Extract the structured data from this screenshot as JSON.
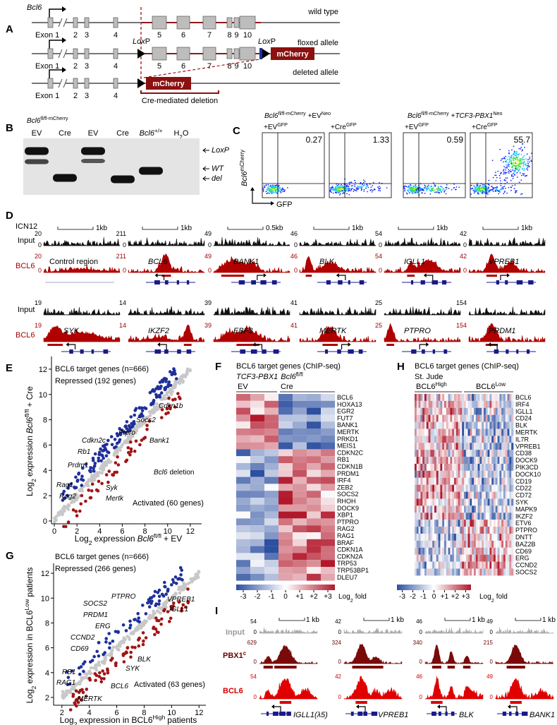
{
  "A": {
    "label": "A",
    "gene": "Bcl6",
    "exon_labels": [
      "Exon 1",
      "2",
      "3",
      "4",
      "5",
      "6",
      "7",
      "8",
      "9",
      "10"
    ],
    "alleles": [
      "wild type",
      "floxed allele",
      "deleted allele"
    ],
    "loxp": [
      "Lox",
      "P"
    ],
    "reporter": "mCherry",
    "deletion": "Cre-mediated deletion"
  },
  "B": {
    "label": "B",
    "title": [
      "Bcl6",
      "fl/fl-mCherry"
    ],
    "lanes": [
      [
        "EV"
      ],
      [
        "Cre"
      ],
      [
        "EV"
      ],
      [
        "Cre"
      ],
      [
        "Bcl6",
        "+/+"
      ],
      [
        "H",
        "2",
        "O"
      ]
    ],
    "bands": [
      "LoxP",
      "WT",
      "del"
    ]
  },
  "C": {
    "label": "C",
    "groups": [
      [
        "Bcl6",
        "fl/fl-mCherry",
        "+EV",
        "Neo"
      ],
      [
        "Bcl6",
        "fl/fl-mCherry",
        "+",
        "TCF3-PBX1",
        "Neo"
      ]
    ],
    "plots": [
      {
        "title": [
          "+EV",
          "GFP"
        ],
        "value": 0.27
      },
      {
        "title": [
          "+Cre",
          "GFP"
        ],
        "value": 1.33
      },
      {
        "title": [
          "+EV",
          "GFP"
        ],
        "value": 0.59
      },
      {
        "title": [
          "+Cre",
          "GFP"
        ],
        "value": 55.7
      }
    ],
    "ylabel": [
      "Bcl6",
      "mCherry"
    ],
    "xlabel": "GFP"
  },
  "D": {
    "label": "D",
    "cell_line": "ICN12",
    "tracks": [
      "Input",
      "BCL6"
    ],
    "zero": 0,
    "rows": [
      [
        {
          "scale": "1kb",
          "input_max": 20,
          "bcl6_max": 20,
          "region": "Control region"
        },
        {
          "scale": "1kb",
          "input_max": 211,
          "bcl6_max": 211,
          "gene": "BCL6"
        },
        {
          "scale": "0.5kb",
          "input_max": 49,
          "bcl6_max": 49,
          "gene": "BANK1"
        },
        {
          "scale": "1kb",
          "input_max": 46,
          "bcl6_max": 46,
          "gene": "BLK"
        },
        {
          "scale": "1kb",
          "input_max": 54,
          "bcl6_max": 54,
          "gene": "IGLL1"
        },
        {
          "scale": "1kb",
          "input_max": 42,
          "bcl6_max": 42,
          "gene": "VPREB1"
        }
      ],
      [
        {
          "input_max": 19,
          "bcl6_max": 19,
          "gene": "SYK"
        },
        {
          "input_max": 14,
          "bcl6_max": 14,
          "gene": "IKZF2"
        },
        {
          "input_max": 39,
          "bcl6_max": 39,
          "gene": "EBF3"
        },
        {
          "input_max": 41,
          "bcl6_max": 41,
          "gene": "MERTK"
        },
        {
          "input_max": 25,
          "bcl6_max": 25,
          "gene": "PTPRO"
        },
        {
          "input_max": 154,
          "bcl6_max": 154,
          "gene": "PRDM1"
        }
      ]
    ]
  },
  "E": {
    "label": "E",
    "title": "BCL6 target genes (n=666)",
    "repressed": "Repressed (192 genes)",
    "activated": "Activated (60 genes)",
    "note": [
      "Bcl6",
      "deletion"
    ],
    "genes": [
      "Cdkn1b",
      "Socs2",
      "Ptpro",
      "Cdkn2c",
      "Rb1",
      "Prdm1",
      "Bank1",
      "Rag1",
      "Rag2",
      "Syk",
      "Mertk"
    ],
    "xlabel": [
      "Log",
      "2",
      "expression",
      "Bcl6",
      "fl/fl",
      "+ EV"
    ],
    "ylabel": [
      "Log",
      "2",
      "expression",
      "Bcl6",
      "fl/fl",
      "+ Cre"
    ],
    "xlim": [
      0,
      13
    ],
    "ylim": [
      0,
      13
    ],
    "xticks": [
      0,
      2,
      4,
      6,
      8,
      10,
      12
    ],
    "yticks": [
      0,
      2,
      4,
      6,
      8,
      10,
      12
    ]
  },
  "F": {
    "label": "F",
    "title": "BCL6 target genes (ChIP-seq)",
    "subtitle": [
      "TCF3-PBX1",
      "Bcl6",
      "fl/fl"
    ],
    "groups": [
      "EV",
      "Cre"
    ],
    "genes": [
      "BCL6",
      "HOXA13",
      "EGR2",
      "FUT7",
      "BANK1",
      "MERTK",
      "PRKD1",
      "MEIS1",
      "CDKN2C",
      "RB1",
      "CDKN1B",
      "PRDM1",
      "IRF4",
      "ZEB2",
      "SOCS2",
      "RHOH",
      "DOCK9",
      "XBP1",
      "PTPRO",
      "RAG2",
      "RAG1",
      "BRAF",
      "CDKN1A",
      "CDKN2A",
      "TRP53",
      "TRP53BP1",
      "DLEU7"
    ],
    "scale_ticks": [
      -3,
      -2,
      -1,
      0,
      {
        "value": 1,
        "label": "+1"
      },
      {
        "value": 2,
        "label": "+2"
      },
      {
        "value": 3,
        "label": "+3"
      }
    ],
    "scale_label": [
      "Log",
      "2",
      "fold"
    ]
  },
  "G": {
    "label": "G",
    "title": "BCL6 target genes (n=666)",
    "repressed": "Repressed (266 genes)",
    "activated": "Activated (63 genes)",
    "genes": [
      "VPREB1",
      "IGLL1",
      "PTPRO",
      "SOCS2",
      "PRDM1",
      "ERG",
      "CCND2",
      "CD69",
      "BLK",
      "SYK",
      "RB1",
      "RAG1",
      "BCL6",
      "MERTK"
    ],
    "xlabel": [
      "Log",
      "2",
      "expression in BCL6",
      "High",
      "patients"
    ],
    "ylabel": [
      "Log",
      "2",
      "expression in BCL6",
      "Low",
      "patients"
    ],
    "xlim": [
      1.6,
      12.5
    ],
    "ylim": [
      1.6,
      12.8
    ],
    "xticks": [
      2,
      4,
      6,
      8,
      10,
      12
    ],
    "yticks": [
      2,
      4,
      6,
      8,
      10,
      12
    ]
  },
  "H": {
    "label": "H",
    "title": "BCL6 target genes (ChIP-seq)",
    "subtitle": "St. Jude",
    "groups": [
      [
        "BCL6",
        "High"
      ],
      [
        "BCL6",
        "Low"
      ]
    ],
    "genes": [
      "BCL6",
      "IRF4",
      "IGLL1",
      "CD24",
      "BLK",
      "MERTK",
      "IL7R",
      "VPREB1",
      "CD38",
      "DOCK9",
      "PIK3CD",
      "DOCK10",
      "CD19",
      "CD22",
      "CD72",
      "SYK",
      "MAPK9",
      "IKZF2",
      "ETV6",
      "PTPRO",
      "DNTT",
      "BAZ2B",
      "CD69",
      "ERG",
      "CCND2",
      "SOCS2"
    ],
    "scale_ticks": [
      -3,
      -2,
      -1,
      0,
      {
        "value": 1,
        "label": "+1"
      },
      {
        "value": 2,
        "label": "+2"
      },
      {
        "value": 3,
        "label": "+3"
      }
    ],
    "scale_label": [
      "Log",
      "2",
      "fold"
    ]
  },
  "I": {
    "label": "I",
    "tracks": [
      [
        "Input"
      ],
      [
        "PBX1",
        "c"
      ],
      [
        "BCL6"
      ]
    ],
    "zero": 0,
    "columns": [
      {
        "scale": "1 kb",
        "input_max": 54,
        "pbx1_max": 629,
        "bcl6_max": 54,
        "gene": "IGLL1(λ5)"
      },
      {
        "scale": "1 kb",
        "input_max": 42,
        "pbx1_max": 324,
        "bcl6_max": 42,
        "gene": "VPREB1"
      },
      {
        "scale": "1 kb",
        "input_max": 46,
        "pbx1_max": 340,
        "bcl6_max": 46,
        "gene": "BLK"
      },
      {
        "scale": "1 kb",
        "input_max": 49,
        "pbx1_max": 215,
        "bcl6_max": 49,
        "gene": "BANK1"
      }
    ]
  }
}
